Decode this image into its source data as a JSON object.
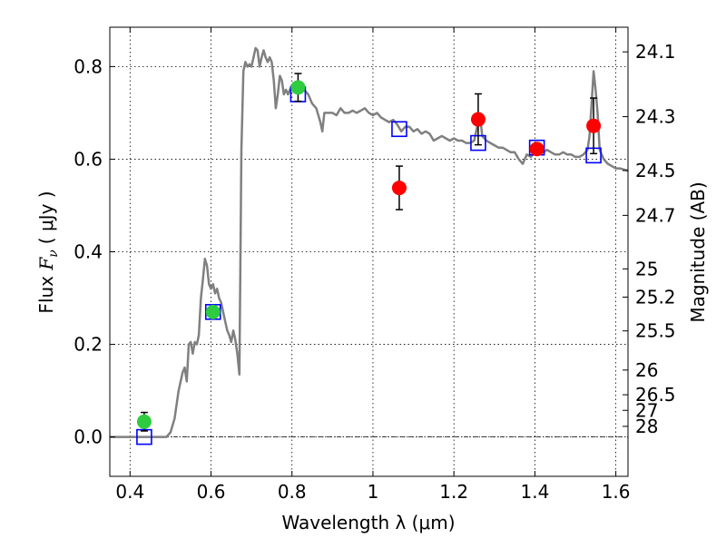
{
  "chart_data": {
    "type": "scatter",
    "xlabel": "Wavelength  λ (μm)",
    "ylabel": "Flux  F_ν  ( μJy )",
    "ylabel_parts": {
      "prefix": "Flux ",
      "symbol": "F",
      "subscript": "ν",
      "unit": "( μJy )"
    },
    "y2label": "Magnitude (AB)",
    "xlim": [
      0.35,
      1.63
    ],
    "ylim": [
      -0.085,
      0.885
    ],
    "grid": true,
    "zero_line": true,
    "x_ticks": [
      {
        "value": 0.4,
        "label": "0.4"
      },
      {
        "value": 0.6,
        "label": "0.6"
      },
      {
        "value": 0.8,
        "label": "0.8"
      },
      {
        "value": 1.0,
        "label": "1"
      },
      {
        "value": 1.2,
        "label": "1.2"
      },
      {
        "value": 1.4,
        "label": "1.4"
      },
      {
        "value": 1.6,
        "label": "1.6"
      }
    ],
    "y_ticks": [
      {
        "value": 0.0,
        "label": "0.0"
      },
      {
        "value": 0.2,
        "label": "0.2"
      },
      {
        "value": 0.4,
        "label": "0.4"
      },
      {
        "value": 0.6,
        "label": "0.6"
      },
      {
        "value": 0.8,
        "label": "0.8"
      }
    ],
    "y2_ticks": [
      {
        "mag": 24.1,
        "label": "24.1"
      },
      {
        "mag": 24.3,
        "label": "24.3"
      },
      {
        "mag": 24.5,
        "label": "24.5"
      },
      {
        "mag": 24.7,
        "label": "24.7"
      },
      {
        "mag": 25,
        "label": "25"
      },
      {
        "mag": 25.2,
        "label": "25.2"
      },
      {
        "mag": 25.5,
        "label": "25.5"
      },
      {
        "mag": 26,
        "label": "26"
      },
      {
        "mag": 26.5,
        "label": "26.5"
      },
      {
        "mag": 27,
        "label": "27"
      },
      {
        "mag": 28,
        "label": "28"
      }
    ],
    "series": [
      {
        "kind": "line",
        "color": "#808080",
        "points": [
          [
            0.35,
            0.0
          ],
          [
            0.49,
            0.0
          ],
          [
            0.5,
            0.01
          ],
          [
            0.51,
            0.04
          ],
          [
            0.52,
            0.1
          ],
          [
            0.53,
            0.14
          ],
          [
            0.535,
            0.15
          ],
          [
            0.54,
            0.12
          ],
          [
            0.545,
            0.2
          ],
          [
            0.55,
            0.205
          ],
          [
            0.555,
            0.18
          ],
          [
            0.56,
            0.205
          ],
          [
            0.565,
            0.2
          ],
          [
            0.57,
            0.22
          ],
          [
            0.575,
            0.3
          ],
          [
            0.58,
            0.34
          ],
          [
            0.585,
            0.385
          ],
          [
            0.59,
            0.37
          ],
          [
            0.595,
            0.33
          ],
          [
            0.6,
            0.32
          ],
          [
            0.605,
            0.33
          ],
          [
            0.61,
            0.31
          ],
          [
            0.615,
            0.32
          ],
          [
            0.62,
            0.3
          ],
          [
            0.625,
            0.29
          ],
          [
            0.63,
            0.27
          ],
          [
            0.635,
            0.25
          ],
          [
            0.64,
            0.23
          ],
          [
            0.645,
            0.22
          ],
          [
            0.65,
            0.205
          ],
          [
            0.655,
            0.23
          ],
          [
            0.66,
            0.21
          ],
          [
            0.665,
            0.18
          ],
          [
            0.67,
            0.135
          ],
          [
            0.675,
            0.62
          ],
          [
            0.68,
            0.79
          ],
          [
            0.685,
            0.81
          ],
          [
            0.69,
            0.8
          ],
          [
            0.695,
            0.805
          ],
          [
            0.7,
            0.8
          ],
          [
            0.705,
            0.82
          ],
          [
            0.71,
            0.84
          ],
          [
            0.715,
            0.835
          ],
          [
            0.72,
            0.8
          ],
          [
            0.725,
            0.82
          ],
          [
            0.73,
            0.835
          ],
          [
            0.735,
            0.82
          ],
          [
            0.74,
            0.81
          ],
          [
            0.745,
            0.82
          ],
          [
            0.75,
            0.81
          ],
          [
            0.755,
            0.77
          ],
          [
            0.76,
            0.71
          ],
          [
            0.765,
            0.74
          ],
          [
            0.77,
            0.78
          ],
          [
            0.775,
            0.77
          ],
          [
            0.78,
            0.74
          ],
          [
            0.785,
            0.75
          ],
          [
            0.79,
            0.74
          ],
          [
            0.8,
            0.76
          ],
          [
            0.81,
            0.76
          ],
          [
            0.82,
            0.755
          ],
          [
            0.83,
            0.75
          ],
          [
            0.84,
            0.74
          ],
          [
            0.85,
            0.72
          ],
          [
            0.86,
            0.71
          ],
          [
            0.87,
            0.68
          ],
          [
            0.875,
            0.66
          ],
          [
            0.88,
            0.7
          ],
          [
            0.89,
            0.7
          ],
          [
            0.9,
            0.7
          ],
          [
            0.91,
            0.695
          ],
          [
            0.92,
            0.71
          ],
          [
            0.93,
            0.7
          ],
          [
            0.94,
            0.7
          ],
          [
            0.95,
            0.705
          ],
          [
            0.96,
            0.7
          ],
          [
            0.97,
            0.705
          ],
          [
            0.98,
            0.71
          ],
          [
            0.99,
            0.7
          ],
          [
            1.0,
            0.695
          ],
          [
            1.01,
            0.7
          ],
          [
            1.02,
            0.69
          ],
          [
            1.03,
            0.685
          ],
          [
            1.04,
            0.68
          ],
          [
            1.05,
            0.685
          ],
          [
            1.06,
            0.675
          ],
          [
            1.07,
            0.66
          ],
          [
            1.08,
            0.67
          ],
          [
            1.09,
            0.67
          ],
          [
            1.1,
            0.66
          ],
          [
            1.11,
            0.665
          ],
          [
            1.12,
            0.655
          ],
          [
            1.13,
            0.66
          ],
          [
            1.14,
            0.655
          ],
          [
            1.15,
            0.64
          ],
          [
            1.16,
            0.645
          ],
          [
            1.17,
            0.65
          ],
          [
            1.18,
            0.645
          ],
          [
            1.19,
            0.64
          ],
          [
            1.2,
            0.645
          ],
          [
            1.21,
            0.64
          ],
          [
            1.22,
            0.64
          ],
          [
            1.23,
            0.635
          ],
          [
            1.24,
            0.635
          ],
          [
            1.25,
            0.64
          ],
          [
            1.255,
            0.66
          ],
          [
            1.26,
            0.68
          ],
          [
            1.265,
            0.69
          ],
          [
            1.27,
            0.65
          ],
          [
            1.28,
            0.64
          ],
          [
            1.29,
            0.635
          ],
          [
            1.3,
            0.63
          ],
          [
            1.31,
            0.625
          ],
          [
            1.32,
            0.625
          ],
          [
            1.33,
            0.62
          ],
          [
            1.34,
            0.615
          ],
          [
            1.35,
            0.615
          ],
          [
            1.36,
            0.6
          ],
          [
            1.37,
            0.59
          ],
          [
            1.38,
            0.61
          ],
          [
            1.39,
            0.605
          ],
          [
            1.4,
            0.615
          ],
          [
            1.41,
            0.61
          ],
          [
            1.42,
            0.615
          ],
          [
            1.43,
            0.62
          ],
          [
            1.44,
            0.615
          ],
          [
            1.45,
            0.61
          ],
          [
            1.46,
            0.61
          ],
          [
            1.47,
            0.615
          ],
          [
            1.48,
            0.61
          ],
          [
            1.49,
            0.61
          ],
          [
            1.5,
            0.605
          ],
          [
            1.51,
            0.605
          ],
          [
            1.52,
            0.61
          ],
          [
            1.53,
            0.62
          ],
          [
            1.535,
            0.65
          ],
          [
            1.54,
            0.72
          ],
          [
            1.545,
            0.79
          ],
          [
            1.55,
            0.75
          ],
          [
            1.555,
            0.7
          ],
          [
            1.56,
            0.62
          ],
          [
            1.57,
            0.6
          ],
          [
            1.58,
            0.59
          ],
          [
            1.59,
            0.585
          ],
          [
            1.6,
            0.58
          ],
          [
            1.61,
            0.58
          ],
          [
            1.63,
            0.575
          ]
        ]
      },
      {
        "kind": "points",
        "marker": "circle",
        "color": "#2ecc40",
        "points": [
          {
            "x": 0.435,
            "y": 0.033,
            "yerr": 0.02
          },
          {
            "x": 0.605,
            "y": 0.27,
            "yerr": 0.01
          },
          {
            "x": 0.815,
            "y": 0.755,
            "yerr": 0.03
          }
        ]
      },
      {
        "kind": "points",
        "marker": "circle",
        "color": "#ff0000",
        "points": [
          {
            "x": 1.065,
            "y": 0.538,
            "yerr": 0.047
          },
          {
            "x": 1.26,
            "y": 0.686,
            "yerr": 0.055
          },
          {
            "x": 1.405,
            "y": 0.622,
            "yerr": 0.0
          },
          {
            "x": 1.545,
            "y": 0.672,
            "yerr": 0.06
          }
        ]
      },
      {
        "kind": "points",
        "marker": "square-open",
        "color": "#0000ff",
        "points": [
          {
            "x": 0.435,
            "y": 0.0
          },
          {
            "x": 0.605,
            "y": 0.27
          },
          {
            "x": 0.815,
            "y": 0.74
          },
          {
            "x": 1.065,
            "y": 0.665
          },
          {
            "x": 1.26,
            "y": 0.635
          },
          {
            "x": 1.405,
            "y": 0.625
          },
          {
            "x": 1.545,
            "y": 0.608
          }
        ]
      }
    ]
  }
}
